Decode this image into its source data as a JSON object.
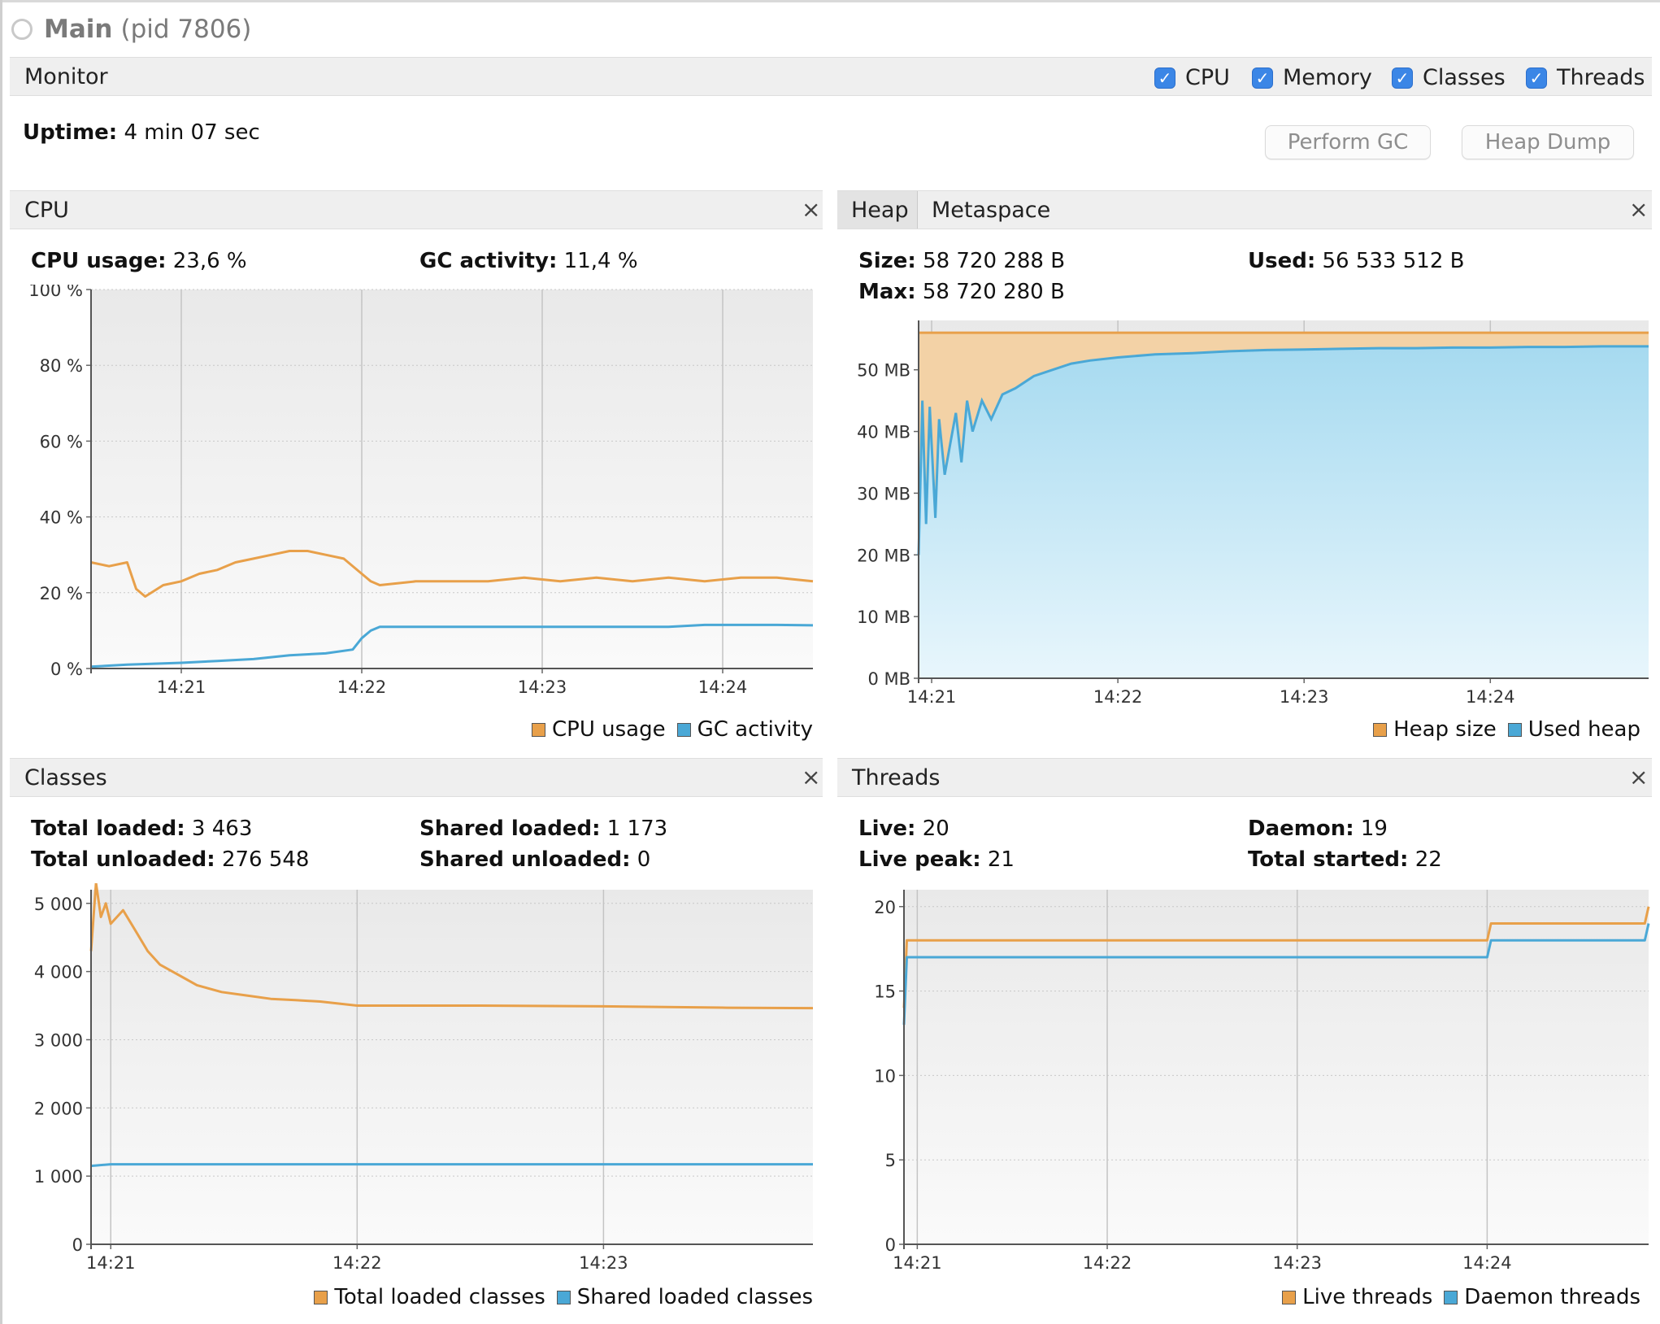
{
  "window": {
    "title": "Main",
    "pid": "(pid 7806)"
  },
  "monitor": {
    "label": "Monitor",
    "checkboxes": [
      {
        "label": "CPU",
        "checked": true
      },
      {
        "label": "Memory",
        "checked": true
      },
      {
        "label": "Classes",
        "checked": true
      },
      {
        "label": "Threads",
        "checked": true
      }
    ],
    "uptime_label": "Uptime:",
    "uptime_value": "4 min 07 sec",
    "perform_gc": "Perform GC",
    "heap_dump": "Heap Dump"
  },
  "colors": {
    "orange": "#e8a04a",
    "blue": "#4aa8d6",
    "heap_fill_top": "#a6daf0",
    "heap_fill_bottom": "#e8f6fc",
    "heap_size_fill": "#f3d2a6"
  },
  "panels": {
    "cpu": {
      "title": "CPU",
      "stats": [
        {
          "label": "CPU usage:",
          "value": "23,6 %"
        },
        {
          "label": "GC activity:",
          "value": "11,4 %"
        }
      ],
      "legend": [
        "CPU usage",
        "GC activity"
      ]
    },
    "memory": {
      "tabs": [
        "Heap",
        "Metaspace"
      ],
      "active_tab": "Heap",
      "stats": [
        {
          "label": "Size:",
          "value": "58 720 288 B"
        },
        {
          "label": "Used:",
          "value": "56 533 512 B"
        },
        {
          "label": "Max:",
          "value": "58 720 280 B"
        }
      ],
      "legend": [
        "Heap size",
        "Used heap"
      ]
    },
    "classes": {
      "title": "Classes",
      "stats": [
        {
          "label": "Total loaded:",
          "value": "3 463"
        },
        {
          "label": "Shared loaded:",
          "value": "1 173"
        },
        {
          "label": "Total unloaded:",
          "value": "276 548"
        },
        {
          "label": "Shared unloaded:",
          "value": "0"
        }
      ],
      "legend": [
        "Total loaded classes",
        "Shared loaded classes"
      ]
    },
    "threads": {
      "title": "Threads",
      "stats": [
        {
          "label": "Live:",
          "value": "20"
        },
        {
          "label": "Daemon:",
          "value": "19"
        },
        {
          "label": "Live peak:",
          "value": "21"
        },
        {
          "label": "Total started:",
          "value": "22"
        }
      ],
      "legend": [
        "Live threads",
        "Daemon threads"
      ]
    }
  },
  "chart_data": [
    {
      "type": "line",
      "name": "CPU",
      "x_ticks": [
        "14:21",
        "14:22",
        "14:23",
        "14:24"
      ],
      "y_ticks": [
        "0 %",
        "20 %",
        "40 %",
        "60 %",
        "80 %",
        "100 %"
      ],
      "ylim": [
        0,
        100
      ],
      "xlim_min": [
        -0.5,
        3.5
      ],
      "series": [
        {
          "name": "CPU usage",
          "color": "#e8a04a",
          "points": [
            [
              -0.5,
              28
            ],
            [
              -0.4,
              27
            ],
            [
              -0.3,
              28
            ],
            [
              -0.25,
              21
            ],
            [
              -0.2,
              19
            ],
            [
              -0.1,
              22
            ],
            [
              0,
              23
            ],
            [
              0.1,
              25
            ],
            [
              0.2,
              26
            ],
            [
              0.3,
              28
            ],
            [
              0.4,
              29
            ],
            [
              0.5,
              30
            ],
            [
              0.6,
              31
            ],
            [
              0.7,
              31
            ],
            [
              0.8,
              30
            ],
            [
              0.9,
              29
            ],
            [
              1.0,
              25
            ],
            [
              1.05,
              23
            ],
            [
              1.1,
              22
            ],
            [
              1.3,
              23
            ],
            [
              1.5,
              23
            ],
            [
              1.7,
              23
            ],
            [
              1.9,
              24
            ],
            [
              2.1,
              23
            ],
            [
              2.3,
              24
            ],
            [
              2.5,
              23
            ],
            [
              2.7,
              24
            ],
            [
              2.9,
              23
            ],
            [
              3.1,
              24
            ],
            [
              3.3,
              24
            ],
            [
              3.5,
              23
            ]
          ]
        },
        {
          "name": "GC activity",
          "color": "#4aa8d6",
          "points": [
            [
              -0.5,
              0.5
            ],
            [
              -0.3,
              1
            ],
            [
              0,
              1.5
            ],
            [
              0.2,
              2
            ],
            [
              0.4,
              2.5
            ],
            [
              0.6,
              3.5
            ],
            [
              0.8,
              4
            ],
            [
              0.95,
              5
            ],
            [
              1.0,
              8
            ],
            [
              1.05,
              10
            ],
            [
              1.1,
              11
            ],
            [
              1.3,
              11
            ],
            [
              1.5,
              11
            ],
            [
              1.7,
              11
            ],
            [
              1.9,
              11
            ],
            [
              2.1,
              11
            ],
            [
              2.3,
              11
            ],
            [
              2.5,
              11
            ],
            [
              2.7,
              11
            ],
            [
              2.9,
              11.5
            ],
            [
              3.1,
              11.5
            ],
            [
              3.3,
              11.5
            ],
            [
              3.5,
              11.4
            ]
          ]
        }
      ]
    },
    {
      "type": "area",
      "name": "Heap",
      "x_ticks": [
        "14:21",
        "14:22",
        "14:23",
        "14:24"
      ],
      "y_ticks": [
        "0 MB",
        "10 MB",
        "20 MB",
        "30 MB",
        "40 MB",
        "50 MB"
      ],
      "ylim": [
        0,
        58
      ],
      "xlim_min": [
        -0.07,
        3.85
      ],
      "series": [
        {
          "name": "Heap size",
          "color": "#e8a04a",
          "points": [
            [
              -0.07,
              56
            ],
            [
              3.85,
              56
            ]
          ]
        },
        {
          "name": "Used heap",
          "color": "#4aa8d6",
          "points": [
            [
              -0.07,
              20
            ],
            [
              -0.05,
              45
            ],
            [
              -0.03,
              25
            ],
            [
              -0.01,
              44
            ],
            [
              0.02,
              26
            ],
            [
              0.04,
              42
            ],
            [
              0.07,
              33
            ],
            [
              0.1,
              38
            ],
            [
              0.13,
              43
            ],
            [
              0.16,
              35
            ],
            [
              0.19,
              45
            ],
            [
              0.22,
              40
            ],
            [
              0.27,
              45
            ],
            [
              0.32,
              42
            ],
            [
              0.38,
              46
            ],
            [
              0.45,
              47
            ],
            [
              0.55,
              49
            ],
            [
              0.65,
              50
            ],
            [
              0.75,
              51
            ],
            [
              0.85,
              51.5
            ],
            [
              1.0,
              52
            ],
            [
              1.2,
              52.5
            ],
            [
              1.4,
              52.7
            ],
            [
              1.6,
              53
            ],
            [
              1.8,
              53.2
            ],
            [
              2.0,
              53.3
            ],
            [
              2.2,
              53.4
            ],
            [
              2.4,
              53.5
            ],
            [
              2.6,
              53.5
            ],
            [
              2.8,
              53.6
            ],
            [
              3.0,
              53.6
            ],
            [
              3.2,
              53.7
            ],
            [
              3.4,
              53.7
            ],
            [
              3.6,
              53.8
            ],
            [
              3.85,
              53.8
            ]
          ]
        }
      ]
    },
    {
      "type": "line",
      "name": "Classes",
      "x_ticks": [
        "14:21",
        "14:22",
        "14:23",
        "14:24"
      ],
      "y_ticks": [
        "0",
        "1 000",
        "2 000",
        "3 000",
        "4 000",
        "5 000"
      ],
      "ylim": [
        0,
        5200
      ],
      "xlim_min": [
        -0.08,
        2.85
      ],
      "series": [
        {
          "name": "Total loaded classes",
          "color": "#e8a04a",
          "points": [
            [
              -0.08,
              4300
            ],
            [
              -0.06,
              5300
            ],
            [
              -0.04,
              4800
            ],
            [
              -0.02,
              5000
            ],
            [
              0.0,
              4700
            ],
            [
              0.05,
              4900
            ],
            [
              0.1,
              4600
            ],
            [
              0.15,
              4300
            ],
            [
              0.2,
              4100
            ],
            [
              0.25,
              4000
            ],
            [
              0.3,
              3900
            ],
            [
              0.35,
              3800
            ],
            [
              0.45,
              3700
            ],
            [
              0.55,
              3650
            ],
            [
              0.65,
              3600
            ],
            [
              0.75,
              3580
            ],
            [
              0.85,
              3560
            ],
            [
              1.0,
              3500
            ],
            [
              1.5,
              3500
            ],
            [
              2.0,
              3490
            ],
            [
              2.5,
              3470
            ],
            [
              2.85,
              3463
            ]
          ]
        },
        {
          "name": "Shared loaded classes",
          "color": "#4aa8d6",
          "points": [
            [
              -0.08,
              1150
            ],
            [
              0.0,
              1173
            ],
            [
              2.85,
              1173
            ]
          ]
        }
      ]
    },
    {
      "type": "line",
      "name": "Threads",
      "x_ticks": [
        "14:21",
        "14:22",
        "14:23",
        "14:24"
      ],
      "y_ticks": [
        "0",
        "5",
        "10",
        "15",
        "20"
      ],
      "ylim": [
        0,
        21
      ],
      "xlim_min": [
        -0.07,
        3.85
      ],
      "series": [
        {
          "name": "Live threads",
          "color": "#e8a04a",
          "points": [
            [
              -0.07,
              14
            ],
            [
              -0.055,
              18
            ],
            [
              3.0,
              18
            ],
            [
              3.02,
              19
            ],
            [
              3.83,
              19
            ],
            [
              3.85,
              20
            ]
          ]
        },
        {
          "name": "Daemon threads",
          "color": "#4aa8d6",
          "points": [
            [
              -0.07,
              13
            ],
            [
              -0.055,
              17
            ],
            [
              3.0,
              17
            ],
            [
              3.02,
              18
            ],
            [
              3.83,
              18
            ],
            [
              3.85,
              19
            ]
          ]
        }
      ]
    }
  ]
}
